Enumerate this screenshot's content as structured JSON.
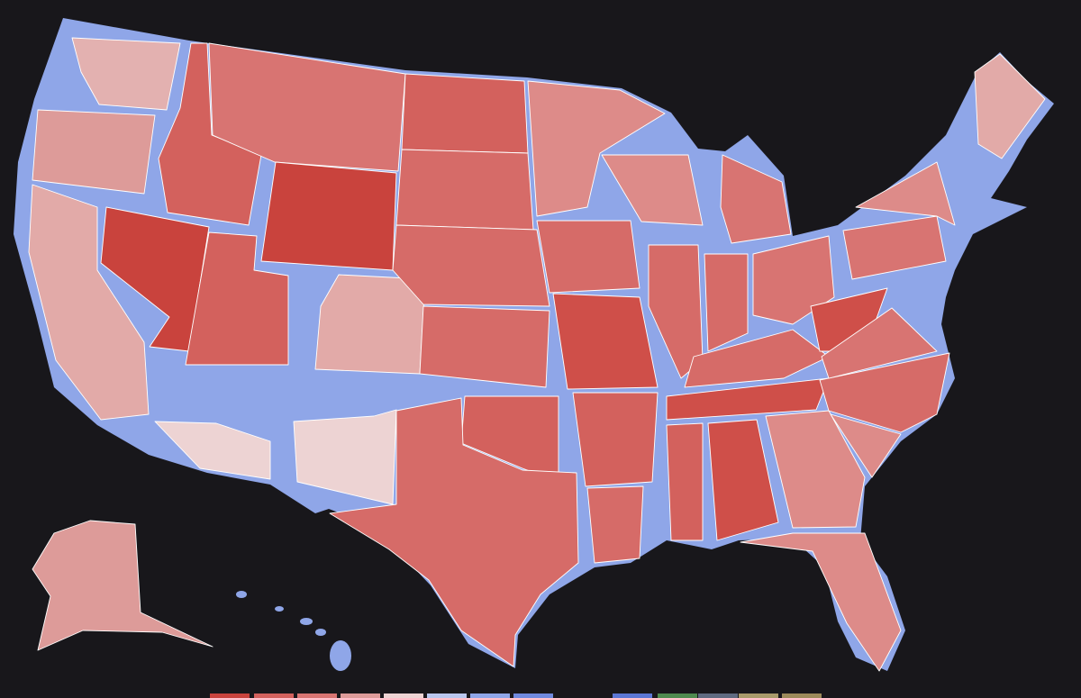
{
  "legend": {
    "colors": [
      "#c9433d",
      "#d3615d",
      "#d87472",
      "#dd9b99",
      "#edd3d3",
      "#b9c6ee",
      "#8fa6e8",
      "#6f89de",
      "#5b76d4",
      "#4f8a4f",
      "#5f6a80",
      "#a89a6a",
      "#9c8a5a"
    ]
  }
}
